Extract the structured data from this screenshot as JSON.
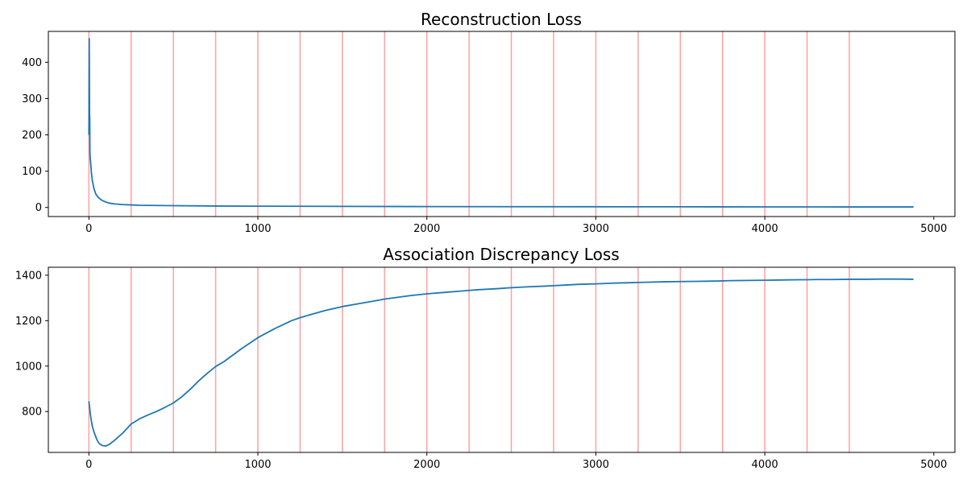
{
  "chart_data": [
    {
      "type": "line",
      "title": "Reconstruction Loss",
      "xlabel": "",
      "ylabel": "",
      "xlim": [
        -240,
        5125
      ],
      "ylim": [
        -25,
        485
      ],
      "xticks": [
        0,
        1000,
        2000,
        3000,
        4000,
        5000
      ],
      "yticks": [
        0,
        100,
        200,
        300,
        400
      ],
      "grid": false,
      "line_color": "#1f77b4",
      "vline_color": "#ff8080",
      "vlines": [
        0,
        250,
        500,
        750,
        1000,
        1250,
        1500,
        1750,
        2000,
        2250,
        2500,
        2750,
        3000,
        3250,
        3500,
        3750,
        4000,
        4250,
        4500
      ],
      "series": [
        {
          "x": [
            0,
            2,
            4,
            5,
            6,
            8,
            10,
            15,
            20,
            30,
            40,
            50,
            60,
            70,
            80,
            100,
            120,
            150,
            200,
            250,
            300,
            400,
            500,
            750,
            1000,
            1500,
            2000,
            2500,
            3000,
            3500,
            4000,
            4500,
            4880
          ],
          "y": [
            200,
            465,
            240,
            250,
            150,
            135,
            125,
            95,
            75,
            52,
            38,
            31,
            26,
            22,
            19,
            15,
            12,
            10,
            8,
            7,
            6,
            5.5,
            5,
            4,
            3.5,
            3,
            2.5,
            2.2,
            2,
            1.8,
            1.6,
            1.5,
            1.5
          ]
        }
      ]
    },
    {
      "type": "line",
      "title": "Association Discrepancy Loss",
      "xlabel": "",
      "ylabel": "",
      "xlim": [
        -240,
        5125
      ],
      "ylim": [
        620,
        1435
      ],
      "xticks": [
        0,
        1000,
        2000,
        3000,
        4000,
        5000
      ],
      "yticks": [
        800,
        1000,
        1200,
        1400
      ],
      "grid": false,
      "line_color": "#1f77b4",
      "vline_color": "#ff8080",
      "vlines": [
        0,
        250,
        500,
        750,
        1000,
        1250,
        1500,
        1750,
        2000,
        2250,
        2500,
        2750,
        3000,
        3250,
        3500,
        3750,
        4000,
        4250,
        4500
      ],
      "series": [
        {
          "x": [
            0,
            10,
            20,
            30,
            40,
            50,
            60,
            80,
            100,
            120,
            150,
            200,
            250,
            300,
            350,
            400,
            450,
            500,
            550,
            600,
            650,
            700,
            750,
            800,
            900,
            1000,
            1100,
            1200,
            1250,
            1300,
            1400,
            1500,
            1600,
            1700,
            1750,
            1800,
            1900,
            2000,
            2100,
            2200,
            2250,
            2300,
            2400,
            2500,
            2600,
            2700,
            2750,
            2800,
            2900,
            3000,
            3100,
            3200,
            3250,
            3300,
            3400,
            3500,
            3600,
            3700,
            3750,
            3800,
            3900,
            4000,
            4100,
            4200,
            4250,
            4300,
            4400,
            4500,
            4600,
            4700,
            4800,
            4880
          ],
          "y": [
            845,
            780,
            735,
            710,
            690,
            672,
            660,
            650,
            648,
            655,
            672,
            705,
            745,
            768,
            785,
            800,
            818,
            838,
            865,
            898,
            935,
            968,
            998,
            1020,
            1075,
            1125,
            1165,
            1200,
            1213,
            1224,
            1245,
            1262,
            1275,
            1288,
            1295,
            1300,
            1310,
            1318,
            1324,
            1330,
            1333,
            1336,
            1340,
            1345,
            1349,
            1352,
            1354,
            1356,
            1360,
            1362,
            1365,
            1367,
            1368,
            1369,
            1371,
            1372,
            1373,
            1374,
            1375,
            1376,
            1377,
            1378,
            1379,
            1380,
            1380,
            1381,
            1381,
            1382,
            1382,
            1383,
            1383,
            1382
          ]
        }
      ]
    }
  ]
}
